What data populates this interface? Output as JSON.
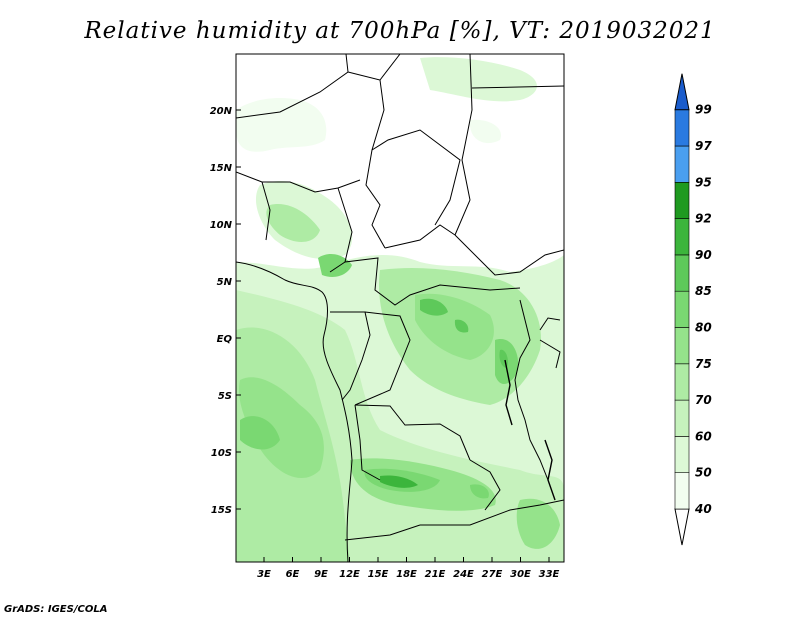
{
  "title": "Relative humidity at 700hPa [%], VT: 2019032021",
  "credit": "GrADS: IGES/COLA",
  "map": {
    "lat_labels": [
      "20N",
      "15N",
      "10N",
      "5N",
      "EQ",
      "5S",
      "10S",
      "15S"
    ],
    "lon_labels": [
      "3E",
      "6E",
      "9E",
      "12E",
      "15E",
      "18E",
      "21E",
      "24E",
      "27E",
      "30E",
      "33E"
    ]
  },
  "colorbar": {
    "levels": [
      "40",
      "50",
      "60",
      "70",
      "75",
      "80",
      "85",
      "90",
      "92",
      "95",
      "97",
      "99"
    ],
    "colors": [
      "#f2fdf0",
      "#dcf8d6",
      "#c6f2bd",
      "#aeeba4",
      "#95e38b",
      "#7ad872",
      "#5ec95a",
      "#3cb53c",
      "#1f9a20",
      "#4a9ff0",
      "#2a7ae0",
      "#1a5ccc"
    ]
  }
}
